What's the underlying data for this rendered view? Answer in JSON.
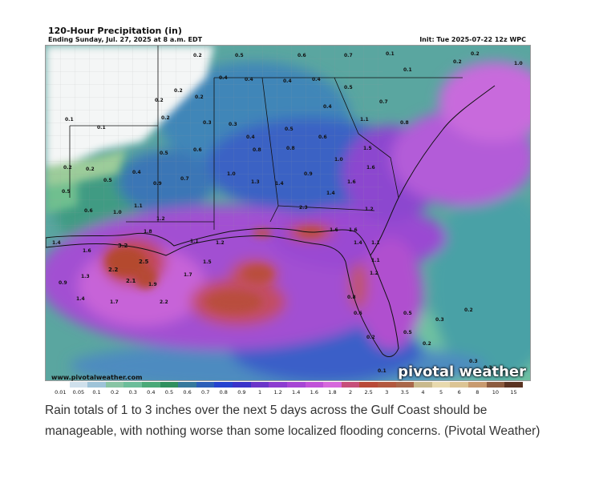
{
  "map": {
    "title": "120-Hour Precipitation (in)",
    "subtitle": "Ending Sunday, Jul. 27, 2025 at 8 a.m. EDT",
    "init": "Init: Tue 2025-07-22 12z WPC",
    "website": "www.pivotalweather.com",
    "brand": "pivotal weather"
  },
  "legend": {
    "labels": [
      "0.01",
      "0.05",
      "0.1",
      "0.2",
      "0.3",
      "0.4",
      "0.5",
      "0.6",
      "0.7",
      "0.8",
      "0.9",
      "1",
      "1.2",
      "1.4",
      "1.6",
      "1.8",
      "2",
      "2.5",
      "3",
      "3.5",
      "4",
      "5",
      "6",
      "8",
      "10",
      "15"
    ],
    "colors": [
      "#ffffff",
      "#cfe0ec",
      "#9ec3d8",
      "#88c4a4",
      "#6cbd9a",
      "#4aa978",
      "#2f8f5e",
      "#36799c",
      "#2c5fb8",
      "#2543cf",
      "#3a33c9",
      "#6a35c9",
      "#8c3dd0",
      "#a646d4",
      "#c052d8",
      "#d668dc",
      "#c64f7a",
      "#b84a38",
      "#b2583f",
      "#a9674a",
      "#c9b98c",
      "#e8d9ad",
      "#dcc494",
      "#c89a6f",
      "#8c5b3f",
      "#5a3322"
    ]
  },
  "values": [
    "0.2",
    "0.5",
    "0.6",
    "0.7",
    "0.1",
    "0.2",
    "1.0",
    "0.1",
    "0.2",
    "0.4",
    "0.4",
    "0.4",
    "0.4",
    "0.5",
    "0.2",
    "0.2",
    "0.2",
    "0.3",
    "0.1",
    "0.1",
    "0.2",
    "0.3",
    "0.4",
    "0.5",
    "0.6",
    "0.6",
    "0.5",
    "0.8",
    "0.8",
    "0.8",
    "1.1",
    "1.0",
    "1.5",
    "1.6",
    "0.9",
    "0.7",
    "0.4",
    "0.2",
    "0.2",
    "0.4",
    "0.5",
    "0.9",
    "0.7",
    "1.0",
    "1.3",
    "1.4",
    "1.4",
    "1.6",
    "0.5",
    "0.6",
    "1.0",
    "1.1",
    "1.2",
    "1.8",
    "2.3",
    "1.6",
    "1.4",
    "1.6",
    "1.2",
    "1.4",
    "1.6",
    "1.3",
    "3.2",
    "2.2",
    "2.5",
    "2.1",
    "1.9",
    "1.7",
    "1.5",
    "1.1",
    "1.2",
    "1.7",
    "2.2",
    "0.9",
    "1.4",
    "1.1",
    "1.1",
    "1.2",
    "0.8",
    "0.6",
    "0.5",
    "0.5",
    "0.2",
    "0.3",
    "0.2",
    "0.3",
    "0.1",
    "0.2",
    "0.3"
  ],
  "caption": "Rain totals of 1 to 3 inches over the next 5 days across the Gulf Coast should be manageable, with nothing worse than some localized flooding concerns. (Pivotal Weather)"
}
